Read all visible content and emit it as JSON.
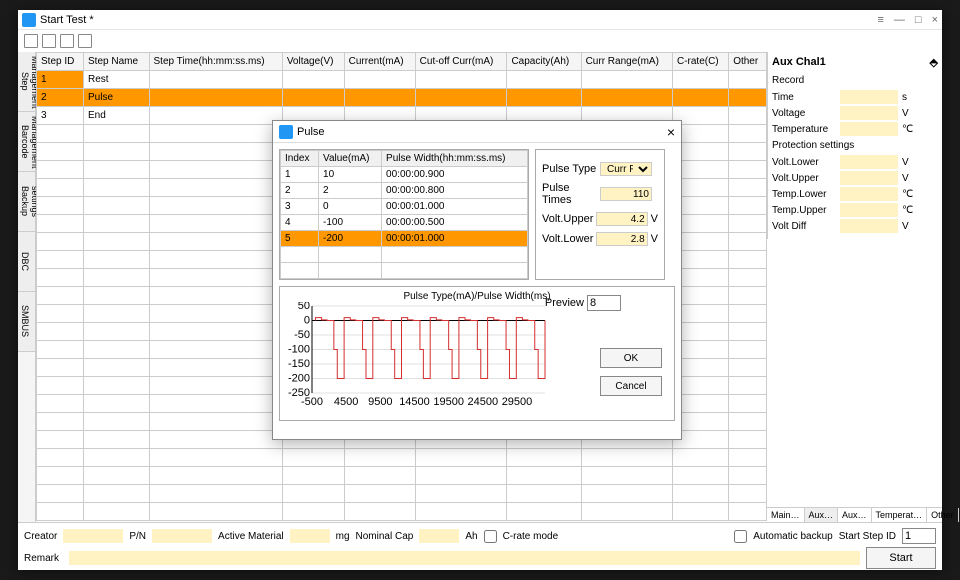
{
  "window": {
    "title": "Start Test *"
  },
  "vtabs": [
    "Step Management",
    "Barcode Management",
    "Backup settings",
    "DBC",
    "SMBUS"
  ],
  "mainTable": {
    "headers": [
      "Step ID",
      "Step Name",
      "Step Time(hh:mm:ss.ms)",
      "Voltage(V)",
      "Current(mA)",
      "Cut-off Curr(mA)",
      "Capacity(Ah)",
      "Curr Range(mA)",
      "C-rate(C)",
      "Other"
    ],
    "rows": [
      {
        "id": "1",
        "name": "Rest",
        "selId": true
      },
      {
        "id": "2",
        "name": "Pulse",
        "sel": true
      },
      {
        "id": "3",
        "name": "End"
      }
    ]
  },
  "auxPanel": {
    "title": "Aux Chal1",
    "pin": "⬘",
    "recordLabel": "Record",
    "fields1": [
      {
        "lbl": "Time",
        "unit": "s"
      },
      {
        "lbl": "Voltage",
        "unit": "V"
      },
      {
        "lbl": "Temperature",
        "unit": "℃"
      }
    ],
    "protLabel": "Protection settings",
    "fields2": [
      {
        "lbl": "Volt.Lower",
        "unit": "V"
      },
      {
        "lbl": "Volt.Upper",
        "unit": "V"
      },
      {
        "lbl": "Temp.Lower",
        "unit": "℃"
      },
      {
        "lbl": "Temp.Upper",
        "unit": "℃"
      },
      {
        "lbl": "Volt Diff",
        "unit": "V"
      }
    ],
    "tabs": [
      "Main…",
      "Aux…",
      "Aux…",
      "Temperat…",
      "Other"
    ]
  },
  "bottom": {
    "creator": "Creator",
    "pn": "P/N",
    "activeMat": "Active Material",
    "mg": "mg",
    "nomCap": "Nominal Cap",
    "ah": "Ah",
    "crate": "C-rate mode",
    "autoBackup": "Automatic backup",
    "startStep": "Start Step ID",
    "startStepVal": "1",
    "startBtn": "Start",
    "remark": "Remark"
  },
  "dialog": {
    "title": "Pulse",
    "pulseHeaders": [
      "Index",
      "Value(mA)",
      "Pulse Width(hh:mm:ss.ms)"
    ],
    "pulseRows": [
      {
        "i": "1",
        "v": "10",
        "w": "00:00:00.900"
      },
      {
        "i": "2",
        "v": "2",
        "w": "00:00:00.800"
      },
      {
        "i": "3",
        "v": "0",
        "w": "00:00:01.000"
      },
      {
        "i": "4",
        "v": "-100",
        "w": "00:00:00.500"
      },
      {
        "i": "5",
        "v": "-200",
        "w": "00:00:01.000",
        "sel": true
      }
    ],
    "right": {
      "pulseType": {
        "lbl": "Pulse Type",
        "val": "Curr Pulse"
      },
      "pulseTimes": {
        "lbl": "Pulse Times",
        "val": "110"
      },
      "voltUpper": {
        "lbl": "Volt.Upper",
        "val": "4.2",
        "unit": "V"
      },
      "voltLower": {
        "lbl": "Volt.Lower",
        "val": "2.8",
        "unit": "V"
      }
    },
    "chart": {
      "title": "Pulse Type(mA)/Pulse Width(ms)",
      "ylabels": [
        "50",
        "0",
        "-50",
        "-100",
        "-150",
        "-200",
        "-250"
      ],
      "xlabels": [
        "-500",
        "4500",
        "9500",
        "14500",
        "19500",
        "24500",
        "29500"
      ],
      "ylim": [
        -250,
        50
      ],
      "xlim": [
        -500,
        33600
      ],
      "lineColor": "#d32f2f",
      "gridColor": "#e0e0e0",
      "previewLbl": "Preview",
      "previewVal": "8"
    },
    "ok": "OK",
    "cancel": "Cancel"
  }
}
